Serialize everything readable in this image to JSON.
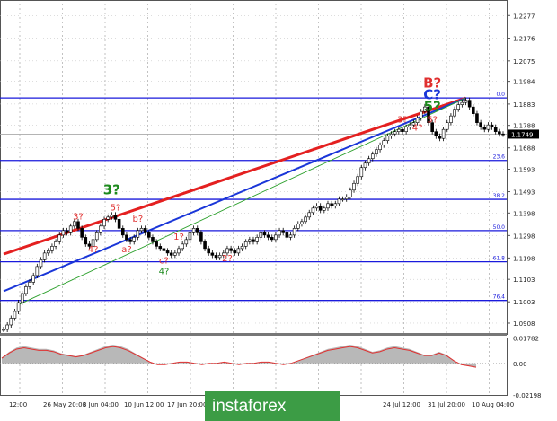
{
  "chart_data": {
    "type": "candlestick",
    "instrument_note": "",
    "title": "",
    "xlabel": "",
    "ylabel": "",
    "ylim": [
      1.086,
      1.233
    ],
    "grid": true,
    "y_ticks": [
      "1.2277",
      "1.2176",
      "1.2075",
      "1.1984",
      "1.1883",
      "1.1788",
      "1.1688",
      "1.1593",
      "1.1493",
      "1.1398",
      "1.1298",
      "1.1198",
      "1.1103",
      "1.1003",
      "1.0908"
    ],
    "current_price": "1.1749",
    "x_ticks": [
      "12:00",
      "26 May 20:00",
      "3 Jun 04:00",
      "10 Jun 12:00",
      "17 Jun 20:00",
      "25",
      "24 Jul 12:00",
      "31 Jul 20:00",
      "10 Aug 04:00"
    ],
    "fib_levels": [
      {
        "label": "0.0",
        "value": 1.191
      },
      {
        "label": "23.6",
        "value": 1.1632
      },
      {
        "label": "38.2",
        "value": 1.1459
      },
      {
        "label": "50.0",
        "value": 1.132
      },
      {
        "label": "61.8",
        "value": 1.1181
      },
      {
        "label": "76.4",
        "value": 1.1009
      }
    ],
    "wave_labels": [
      {
        "text": "3?",
        "color": "#e03030"
      },
      {
        "text": "4?",
        "color": "#e03030"
      },
      {
        "text": "3?",
        "color": "#1c8a1c"
      },
      {
        "text": "5?",
        "color": "#e03030"
      },
      {
        "text": "b?",
        "color": "#e03030"
      },
      {
        "text": "a?",
        "color": "#e03030"
      },
      {
        "text": "1?",
        "color": "#e03030"
      },
      {
        "text": "c?",
        "color": "#e03030"
      },
      {
        "text": "4?",
        "color": "#1c8a1c"
      },
      {
        "text": "2?",
        "color": "#e03030"
      },
      {
        "text": "3?",
        "color": "#e03030"
      },
      {
        "text": "4?",
        "color": "#e03030"
      },
      {
        "text": "5?",
        "color": "#e03030"
      },
      {
        "text": "5?",
        "color": "#1c8a1c"
      },
      {
        "text": "C?",
        "color": "#1a36d8"
      },
      {
        "text": "B?",
        "color": "#e03030"
      }
    ],
    "series": [
      {
        "values": [
          1.088,
          1.09,
          1.093,
          1.096,
          1.1,
          1.104,
          1.107,
          1.109,
          1.112,
          1.116,
          1.119,
          1.122,
          1.123,
          1.125,
          1.127,
          1.13,
          1.132,
          1.131,
          1.134,
          1.136,
          1.133,
          1.129,
          1.126,
          1.125,
          1.128,
          1.131,
          1.134,
          1.137,
          1.138,
          1.139,
          1.137,
          1.133,
          1.13,
          1.128,
          1.127,
          1.129,
          1.132,
          1.133,
          1.131,
          1.129,
          1.127,
          1.125,
          1.124,
          1.123,
          1.122,
          1.121,
          1.122,
          1.124,
          1.126,
          1.128,
          1.131,
          1.133,
          1.131,
          1.127,
          1.124,
          1.122,
          1.121,
          1.12,
          1.121,
          1.122,
          1.124,
          1.123,
          1.122,
          1.124,
          1.125,
          1.127,
          1.128,
          1.127,
          1.129,
          1.131,
          1.13,
          1.129,
          1.128,
          1.13,
          1.132,
          1.131,
          1.129,
          1.13,
          1.133,
          1.135,
          1.136,
          1.138,
          1.14,
          1.142,
          1.143,
          1.141,
          1.142,
          1.144,
          1.143,
          1.144,
          1.146,
          1.146,
          1.147,
          1.15,
          1.153,
          1.156,
          1.16,
          1.162,
          1.164,
          1.166,
          1.168,
          1.17,
          1.172,
          1.174,
          1.175,
          1.176,
          1.177,
          1.176,
          1.178,
          1.179,
          1.18,
          1.182,
          1.185,
          1.187,
          1.18,
          1.176,
          1.174,
          1.173,
          1.177,
          1.18,
          1.183,
          1.186,
          1.188,
          1.189,
          1.19,
          1.187,
          1.184,
          1.18,
          1.178,
          1.177,
          1.179,
          1.178,
          1.176,
          1.175,
          1.1749
        ]
      }
    ],
    "lines": [
      {
        "name": "",
        "color": "#e42020",
        "from": [
          0,
          1.1215
        ],
        "to": [
          124,
          1.191
        ]
      },
      {
        "name": "",
        "color": "#1a36d8",
        "from": [
          0,
          1.105
        ],
        "to": [
          124,
          1.191
        ]
      },
      {
        "name": "",
        "color": "#2ca02c",
        "from": [
          4,
          1.099
        ],
        "to": [
          124,
          1.191
        ]
      }
    ],
    "indicator": {
      "y_ticks": [
        "0.01782",
        "0.00",
        "-0.02198"
      ],
      "values": [
        0.004,
        0.008,
        0.011,
        0.012,
        0.011,
        0.01,
        0.01,
        0.009,
        0.007,
        0.006,
        0.005,
        0.006,
        0.008,
        0.01,
        0.012,
        0.013,
        0.012,
        0.01,
        0.007,
        0.004,
        0.001,
        -0.001,
        -0.001,
        0.0,
        0.001,
        0.001,
        0.0,
        -0.001,
        0.0,
        0.0,
        0.001,
        0.0,
        -0.001,
        0.0,
        0.0,
        0.001,
        0.001,
        0.0,
        -0.001,
        0.0,
        0.002,
        0.004,
        0.006,
        0.008,
        0.01,
        0.011,
        0.012,
        0.013,
        0.012,
        0.01,
        0.008,
        0.009,
        0.011,
        0.012,
        0.011,
        0.01,
        0.008,
        0.006,
        0.006,
        0.008,
        0.006,
        0.002,
        -0.001,
        -0.002,
        -0.003
      ]
    }
  },
  "watermark": "instaforex"
}
